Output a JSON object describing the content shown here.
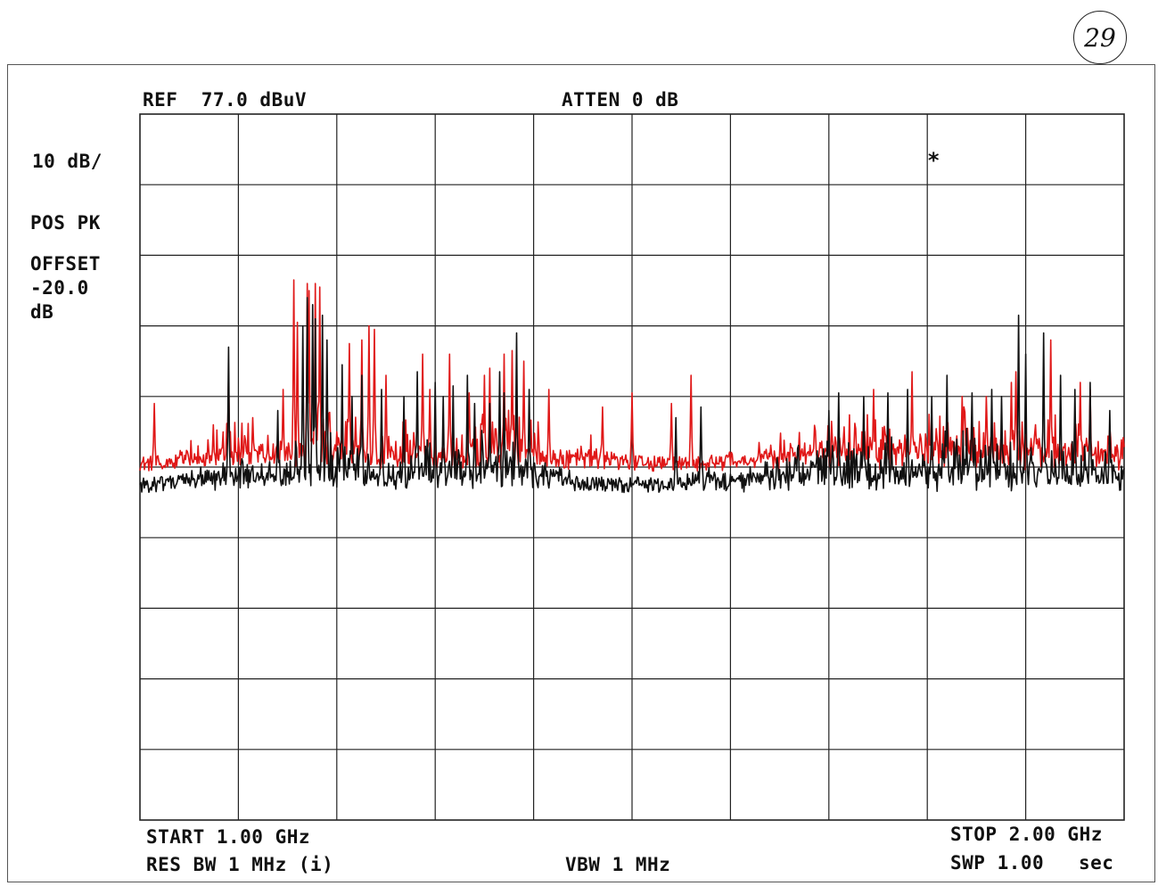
{
  "page_number": "29",
  "header": {
    "ref": "REF  77.0 dBuV",
    "atten": "ATTEN 0 dB"
  },
  "side": {
    "scale": "10 dB/",
    "detector": "POS PK",
    "offset_label": "OFFSET",
    "offset_value": "-20.0",
    "offset_unit": "dB"
  },
  "marker": "*",
  "footer": {
    "start": "START 1.00 GHz",
    "stop": "STOP 2.00 GHz",
    "rbw": "RES BW 1 MHz (i)",
    "vbw": "VBW 1 MHz",
    "sweep_label": "SWP 1.00",
    "sweep_unit": "sec"
  },
  "colors": {
    "trace_1": "#e01818",
    "trace_2": "#111111",
    "grid": "#222222"
  },
  "chart_data": {
    "type": "line",
    "title": "",
    "xlabel": "",
    "ylabel": "",
    "x_unit": "GHz",
    "y_unit": "dBuV",
    "xlim": [
      1.0,
      2.0
    ],
    "ylim": [
      -23.0,
      77.0
    ],
    "grid": true,
    "noise_floor": {
      "trace_1": 27.5,
      "trace_2": 24.5
    },
    "series": [
      {
        "color": "#e01818",
        "points": [
          [
            1.0,
            26.5
          ],
          [
            1.015,
            36.0
          ],
          [
            1.045,
            27.0
          ],
          [
            1.075,
            33.0
          ],
          [
            1.09,
            40.0
          ],
          [
            1.115,
            34.0
          ],
          [
            1.13,
            31.5
          ],
          [
            1.145,
            38.0
          ],
          [
            1.156,
            53.5
          ],
          [
            1.16,
            47.5
          ],
          [
            1.17,
            53.0
          ],
          [
            1.172,
            52.0
          ],
          [
            1.178,
            53.0
          ],
          [
            1.183,
            52.5
          ],
          [
            1.2,
            32.0
          ],
          [
            1.213,
            44.5
          ],
          [
            1.225,
            45.0
          ],
          [
            1.233,
            47.0
          ],
          [
            1.238,
            46.5
          ],
          [
            1.25,
            40.0
          ],
          [
            1.287,
            43.0
          ],
          [
            1.295,
            38.0
          ],
          [
            1.315,
            43.0
          ],
          [
            1.335,
            37.5
          ],
          [
            1.35,
            40.0
          ],
          [
            1.355,
            41.0
          ],
          [
            1.37,
            43.0
          ],
          [
            1.378,
            43.5
          ],
          [
            1.39,
            42.0
          ],
          [
            1.415,
            38.0
          ],
          [
            1.47,
            35.5
          ],
          [
            1.5,
            37.5
          ],
          [
            1.54,
            36.0
          ],
          [
            1.56,
            40.0
          ],
          [
            1.745,
            38.0
          ],
          [
            1.785,
            40.5
          ],
          [
            1.835,
            37.0
          ],
          [
            1.86,
            37.0
          ],
          [
            1.885,
            39.0
          ],
          [
            1.89,
            40.5
          ],
          [
            1.91,
            33.0
          ],
          [
            1.925,
            45.0
          ],
          [
            1.955,
            39.0
          ],
          [
            1.965,
            38.0
          ]
        ]
      },
      {
        "color": "#111111",
        "points": [
          [
            1.09,
            44.0
          ],
          [
            1.14,
            35.0
          ],
          [
            1.165,
            47.0
          ],
          [
            1.17,
            51.0
          ],
          [
            1.175,
            50.0
          ],
          [
            1.178,
            48.0
          ],
          [
            1.185,
            48.5
          ],
          [
            1.19,
            45.0
          ],
          [
            1.205,
            41.5
          ],
          [
            1.215,
            37.0
          ],
          [
            1.225,
            40.0
          ],
          [
            1.245,
            38.0
          ],
          [
            1.268,
            37.0
          ],
          [
            1.282,
            40.5
          ],
          [
            1.3,
            39.0
          ],
          [
            1.308,
            37.0
          ],
          [
            1.318,
            38.5
          ],
          [
            1.333,
            40.0
          ],
          [
            1.34,
            36.0
          ],
          [
            1.355,
            36.0
          ],
          [
            1.365,
            40.5
          ],
          [
            1.37,
            37.5
          ],
          [
            1.383,
            46.0
          ],
          [
            1.395,
            38.0
          ],
          [
            1.545,
            34.0
          ],
          [
            1.57,
            35.5
          ],
          [
            1.7,
            35.0
          ],
          [
            1.71,
            37.5
          ],
          [
            1.735,
            37.0
          ],
          [
            1.76,
            37.5
          ],
          [
            1.78,
            38.0
          ],
          [
            1.805,
            37.0
          ],
          [
            1.82,
            40.0
          ],
          [
            1.845,
            37.5
          ],
          [
            1.865,
            38.0
          ],
          [
            1.875,
            37.0
          ],
          [
            1.893,
            48.5
          ],
          [
            1.9,
            43.0
          ],
          [
            1.918,
            46.0
          ],
          [
            1.935,
            40.0
          ],
          [
            1.95,
            38.0
          ],
          [
            1.965,
            39.0
          ],
          [
            1.985,
            35.0
          ]
        ]
      }
    ]
  }
}
